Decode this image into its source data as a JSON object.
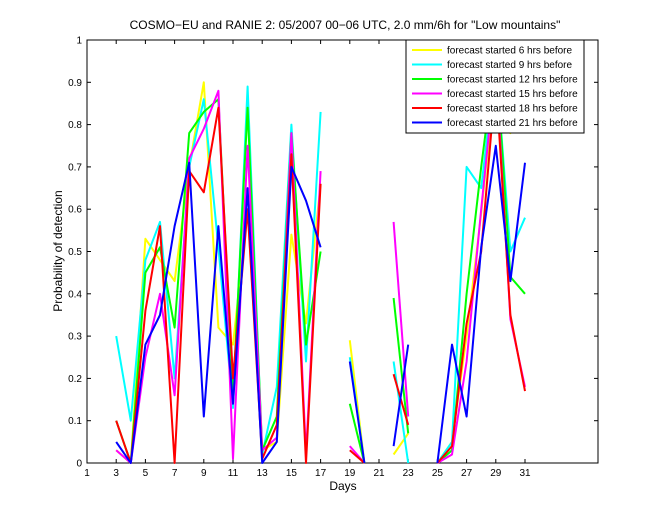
{
  "chart_data": {
    "type": "line",
    "title": "COSMO−EU and RANIE 2: 05/2007 00−06 UTC, 2.0 mm/6h for \"Low mountains\"",
    "xlabel": "Days",
    "ylabel": "Probability of detection",
    "xlim": [
      1,
      36
    ],
    "ylim": [
      0,
      1
    ],
    "x_ticks": [
      "1",
      "3",
      "5",
      "7",
      "9",
      "11",
      "13",
      "15",
      "17",
      "19",
      "21",
      "23",
      "25",
      "27",
      "29",
      "31"
    ],
    "y_ticks": [
      "0",
      "0.1",
      "0.2",
      "0.3",
      "0.4",
      "0.5",
      "0.6",
      "0.7",
      "0.8",
      "0.9",
      "1"
    ],
    "grid": false,
    "legend_position": "top-right",
    "x": [
      1,
      2,
      3,
      4,
      5,
      6,
      7,
      8,
      9,
      10,
      11,
      12,
      13,
      14,
      15,
      16,
      17,
      18,
      19,
      20,
      21,
      22,
      23,
      24,
      25,
      26,
      27,
      28,
      29,
      30,
      31
    ],
    "series": [
      {
        "name": "forecast started 6 hrs before",
        "color": "#ffff00",
        "values": [
          null,
          null,
          0.03,
          0,
          0.53,
          0.48,
          0.43,
          0.7,
          0.9,
          0.32,
          0.28,
          0.6,
          0.03,
          0.05,
          0.54,
          0.33,
          0.66,
          null,
          0.29,
          0,
          null,
          0.02,
          0.07,
          null,
          0,
          0.05,
          0.3,
          0.59,
          0.92,
          0.78,
          0.82
        ]
      },
      {
        "name": "forecast started 9 hrs before",
        "color": "#00ffff",
        "values": [
          null,
          null,
          0.3,
          0.1,
          0.48,
          0.57,
          0.2,
          0.7,
          0.86,
          0.51,
          0.13,
          0.89,
          0.02,
          0.18,
          0.8,
          0.24,
          0.83,
          null,
          0.25,
          0,
          null,
          0.24,
          0,
          null,
          0,
          0.05,
          0.7,
          0.65,
          0.95,
          0.5,
          0.58
        ]
      },
      {
        "name": "forecast started 12 hrs before",
        "color": "#00ff00",
        "values": [
          null,
          null,
          0.1,
          0,
          0.45,
          0.51,
          0.32,
          0.78,
          0.83,
          0.86,
          0.16,
          0.84,
          0.03,
          0.11,
          0.78,
          0.28,
          0.5,
          null,
          0.14,
          0,
          null,
          0.39,
          0.07,
          null,
          0,
          0.03,
          0.4,
          0.7,
          0.97,
          0.44,
          0.4
        ]
      },
      {
        "name": "forecast started 15 hrs before",
        "color": "#ff00ff",
        "values": [
          null,
          null,
          0.03,
          0,
          0.25,
          0.4,
          0.16,
          0.72,
          0.79,
          0.88,
          0.01,
          0.75,
          0.03,
          0.06,
          0.78,
          0.02,
          0.69,
          null,
          0.04,
          0,
          null,
          0.57,
          0.11,
          null,
          0,
          0.02,
          0.24,
          0.6,
          0.94,
          0.34,
          0.18
        ]
      },
      {
        "name": "forecast started 18 hrs before",
        "color": "#ff0000",
        "values": [
          null,
          null,
          0.1,
          0,
          0.36,
          0.56,
          0,
          0.69,
          0.64,
          0.84,
          0.2,
          0.6,
          0.01,
          0.09,
          0.73,
          0,
          0.66,
          null,
          0.03,
          0,
          null,
          0.21,
          0.09,
          null,
          0,
          0.04,
          0.33,
          0.5,
          0.91,
          0.35,
          0.17
        ]
      },
      {
        "name": "forecast started 21 hrs before",
        "color": "#0000ff",
        "values": [
          null,
          null,
          0.05,
          0,
          0.28,
          0.35,
          0.56,
          0.71,
          0.11,
          0.56,
          0.14,
          0.65,
          0,
          0.05,
          0.7,
          0.62,
          0.51,
          null,
          0.24,
          0,
          null,
          0.04,
          0.28,
          null,
          0,
          0.28,
          0.11,
          0.51,
          0.75,
          0.43,
          0.71
        ]
      }
    ]
  }
}
